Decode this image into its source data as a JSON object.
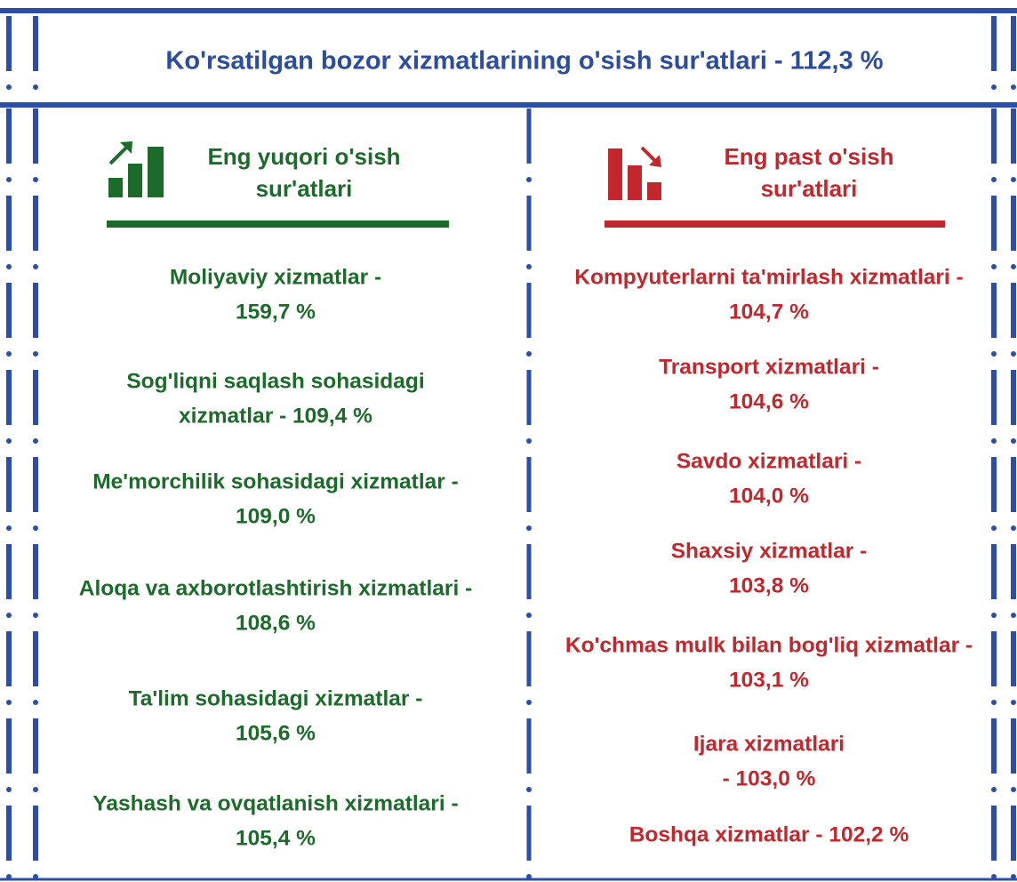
{
  "header": {
    "title": "Ko'rsatilgan bozor xizmatlarining o'sish sur'atlari - 112,3 %"
  },
  "highest": {
    "heading": [
      "Eng yuqori o'sish",
      "sur'atlari"
    ],
    "items": [
      [
        "Moliyaviy xizmatlar -",
        "159,7 %"
      ],
      [
        "Sog'liqni saqlash sohasidagi",
        "xizmatlar - 109,4 %"
      ],
      [
        "Me'morchilik sohasidagi xizmatlar -",
        "109,0 %"
      ],
      [
        "Aloqa va axborotlashtirish xizmatlari -",
        "108,6 %"
      ],
      [
        "Ta'lim sohasidagi xizmatlar -",
        "105,6 %"
      ],
      [
        "Yashash va ovqatlanish xizmatlari -",
        "105,4 %"
      ]
    ]
  },
  "lowest": {
    "heading": [
      "Eng past o'sish",
      "sur'atlari"
    ],
    "items": [
      [
        "Kompyuterlarni ta'mirlash xizmatlari -",
        "104,7 %"
      ],
      [
        "Transport xizmatlari -",
        "104,6 %"
      ],
      [
        "Savdo xizmatlari -",
        "104,0 %"
      ],
      [
        "Shaxsiy xizmatlar -",
        "103,8 %"
      ],
      [
        "Ko'chmas mulk bilan bog'liq xizmatlar -",
        "103,1 %"
      ],
      [
        "Ijara xizmatlari",
        "- 103,0 %"
      ],
      [
        "Boshqa xizmatlar - 102,2 %"
      ]
    ]
  }
}
